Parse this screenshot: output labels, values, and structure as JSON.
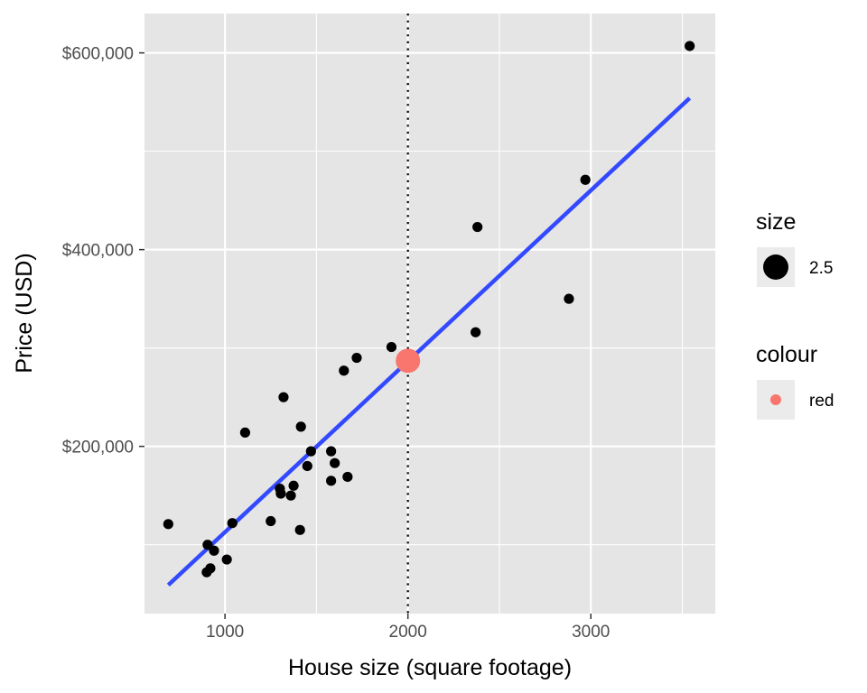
{
  "chart_data": {
    "type": "scatter",
    "xlabel": "House size (square footage)",
    "ylabel": "Price (USD)",
    "xlim": [
      560,
      3680
    ],
    "ylim": [
      30000,
      640000
    ],
    "x_ticks": [
      1000,
      2000,
      3000
    ],
    "x_tick_labels": [
      "1000",
      "2000",
      "3000"
    ],
    "y_ticks": [
      200000,
      400000,
      600000
    ],
    "y_tick_labels": [
      "$200,000",
      "$400,000",
      "$600,000"
    ],
    "grid": true,
    "series": [
      {
        "color": "#000000",
        "points": [
          {
            "x": 690,
            "y": 121000
          },
          {
            "x": 900,
            "y": 72000
          },
          {
            "x": 905,
            "y": 100000
          },
          {
            "x": 920,
            "y": 76000
          },
          {
            "x": 940,
            "y": 94000
          },
          {
            "x": 1010,
            "y": 85000
          },
          {
            "x": 1040,
            "y": 122000
          },
          {
            "x": 1110,
            "y": 214000
          },
          {
            "x": 1250,
            "y": 124000
          },
          {
            "x": 1300,
            "y": 157000
          },
          {
            "x": 1305,
            "y": 152000
          },
          {
            "x": 1320,
            "y": 250000
          },
          {
            "x": 1360,
            "y": 150000
          },
          {
            "x": 1375,
            "y": 160000
          },
          {
            "x": 1410,
            "y": 115000
          },
          {
            "x": 1415,
            "y": 220000
          },
          {
            "x": 1450,
            "y": 180000
          },
          {
            "x": 1470,
            "y": 195000
          },
          {
            "x": 1580,
            "y": 165000
          },
          {
            "x": 1580,
            "y": 195000
          },
          {
            "x": 1600,
            "y": 183000
          },
          {
            "x": 1650,
            "y": 277000
          },
          {
            "x": 1670,
            "y": 169000
          },
          {
            "x": 1720,
            "y": 290000
          },
          {
            "x": 1910,
            "y": 301000
          },
          {
            "x": 2370,
            "y": 316000
          },
          {
            "x": 2380,
            "y": 423000
          },
          {
            "x": 2880,
            "y": 350000
          },
          {
            "x": 2970,
            "y": 471000
          },
          {
            "x": 3540,
            "y": 607000
          }
        ]
      }
    ],
    "trend_line": {
      "color": "#3349ff",
      "x": [
        690,
        3540
      ],
      "y": [
        59000,
        554000
      ]
    },
    "vline": {
      "x": 2000
    },
    "highlight_point": {
      "x": 2000,
      "y": 287000,
      "color": "#f8766d"
    },
    "legends": [
      {
        "title": "size",
        "label": "2.5",
        "color": "#000000"
      },
      {
        "title": "colour",
        "label": "red",
        "color": "#f8766d"
      }
    ],
    "colors": {
      "panel": "#e5e5e5",
      "grid": "#ffffff",
      "point": "#000000",
      "line": "#3349ff",
      "highlight": "#f8766d"
    }
  }
}
